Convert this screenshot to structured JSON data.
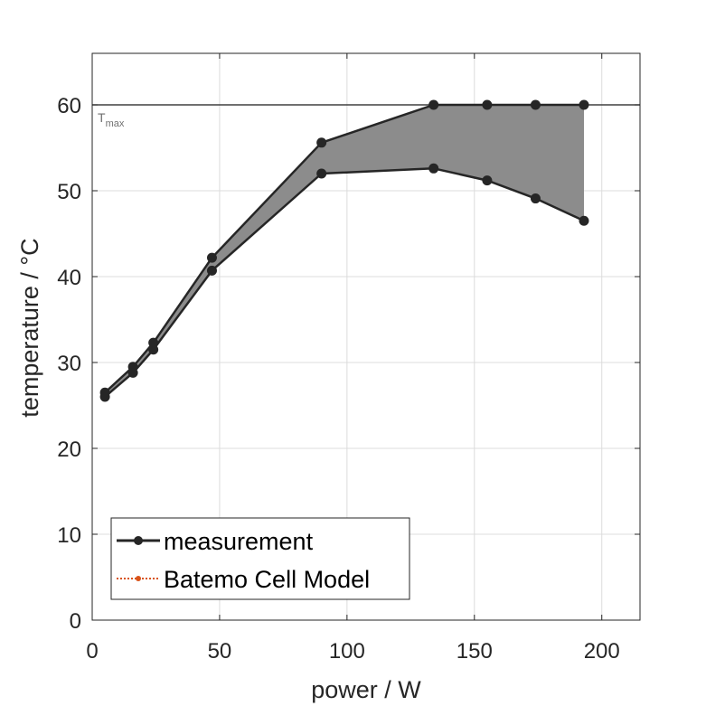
{
  "chart_data": {
    "type": "line",
    "xlabel": "power / W",
    "ylabel": "temperature / °C",
    "xlim": [
      0,
      215
    ],
    "ylim": [
      0,
      66
    ],
    "xticks": [
      0,
      50,
      100,
      150,
      200
    ],
    "yticks": [
      0,
      10,
      20,
      30,
      40,
      50,
      60
    ],
    "grid": true,
    "legend_placement": "bottom-left",
    "series": [
      {
        "name": "measurement",
        "color": "#262626",
        "marker": "filled-dot",
        "upper": {
          "x": [
            5,
            16,
            24,
            47,
            90,
            134,
            155,
            174,
            193
          ],
          "y": [
            26.5,
            29.5,
            32.3,
            42.2,
            55.6,
            60.0,
            60.0,
            60.0,
            60.0
          ]
        },
        "lower": {
          "x": [
            5,
            16,
            24,
            47,
            90,
            134,
            155,
            174,
            193
          ],
          "y": [
            26.0,
            28.8,
            31.5,
            40.7,
            52.0,
            52.6,
            51.2,
            49.1,
            46.5
          ]
        },
        "band_fill": "#8c8c8c"
      },
      {
        "name": "Batemo Cell Model",
        "color": "#d95319",
        "line_style": "dotted",
        "marker": "dot"
      }
    ],
    "annotations": [
      {
        "label": "T",
        "subscript": "max",
        "y": 60,
        "line_color": "#404040"
      }
    ]
  }
}
